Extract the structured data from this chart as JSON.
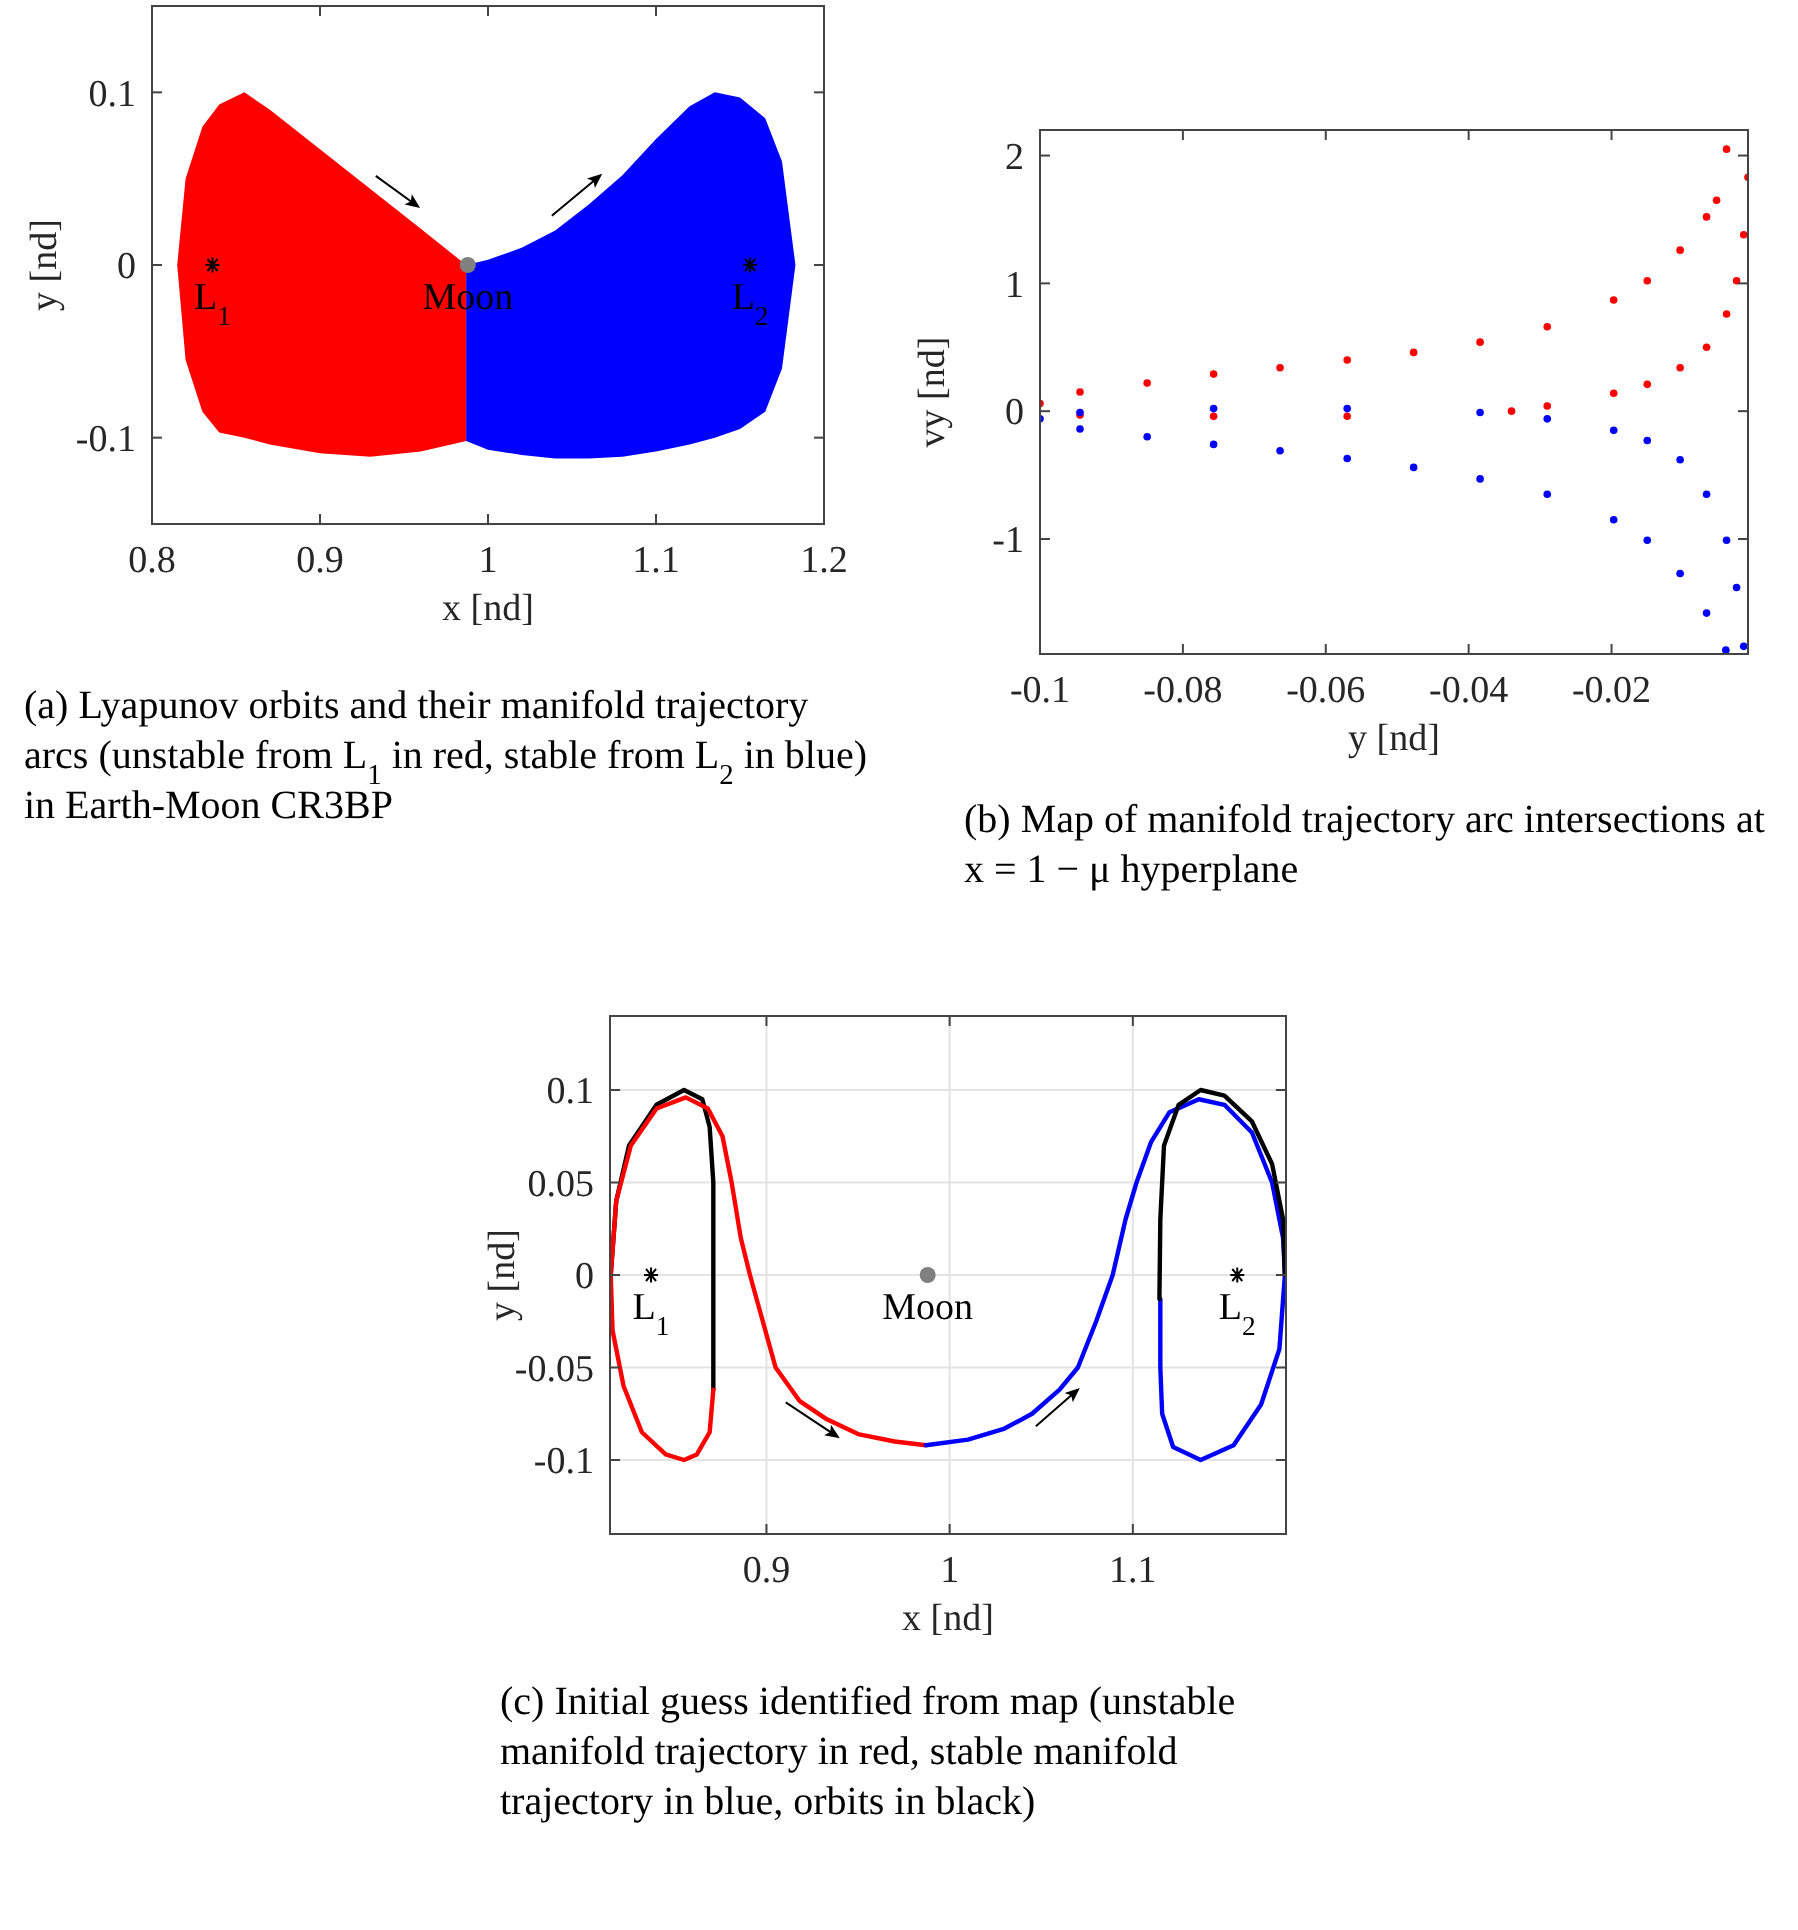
{
  "chart_data": [
    {
      "type": "area",
      "xlabel": "x [nd]",
      "ylabel": "y [nd]",
      "xlim": [
        0.8,
        1.2
      ],
      "ylim": [
        -0.15,
        0.15
      ],
      "xticks": [
        0.8,
        0.9,
        1,
        1.1,
        1.2
      ],
      "yticks": [
        -0.1,
        0,
        0.1
      ],
      "series": [
        {
          "color": "#ff0000",
          "x": [
            0.815,
            0.82,
            0.83,
            0.84,
            0.855,
            0.87,
            0.9,
            0.93,
            0.96,
            0.987
          ],
          "values": [
            0,
            0.05,
            0.08,
            0.093,
            0.1,
            0.09,
            0.067,
            0.044,
            0.021,
            0
          ]
        },
        {
          "color": "#ff0000",
          "x": [
            0.815,
            0.82,
            0.83,
            0.84,
            0.855,
            0.87,
            0.9,
            0.93,
            0.96,
            0.987
          ],
          "values": [
            0,
            -0.055,
            -0.085,
            -0.097,
            -0.1,
            -0.104,
            -0.109,
            -0.111,
            -0.108,
            -0.102
          ]
        },
        {
          "color": "#0000ff",
          "x": [
            0.987,
            1.0,
            1.02,
            1.04,
            1.06,
            1.08,
            1.1,
            1.12,
            1.135,
            1.15,
            1.165,
            1.175,
            1.183
          ],
          "values": [
            0,
            0.003,
            0.01,
            0.02,
            0.035,
            0.052,
            0.073,
            0.092,
            0.1,
            0.097,
            0.085,
            0.06,
            0
          ]
        },
        {
          "color": "#0000ff",
          "x": [
            0.987,
            1.0,
            1.02,
            1.04,
            1.06,
            1.08,
            1.1,
            1.12,
            1.135,
            1.15,
            1.165,
            1.175,
            1.183
          ],
          "values": [
            -0.102,
            -0.107,
            -0.11,
            -0.112,
            -0.112,
            -0.111,
            -0.108,
            -0.104,
            -0.1,
            -0.095,
            -0.085,
            -0.06,
            0
          ]
        },
        {
          "type": "scatter",
          "marker": "cross",
          "color": "#000000",
          "x": [
            0.836,
            1.156
          ],
          "values": [
            0,
            0
          ]
        },
        {
          "type": "scatter",
          "marker": "circle",
          "color": "#808080",
          "x": [
            0.988
          ],
          "values": [
            0
          ]
        }
      ],
      "annotations": [
        {
          "text": "L$_{1}$",
          "x": 0.836,
          "y": 0
        },
        {
          "text": "Moon",
          "x": 0.988,
          "y": 0
        },
        {
          "text": "L$_{2}$",
          "x": 1.156,
          "y": 0
        },
        "(a) Lyapunov orbits and their manifold trajectory arcs (unstable from L$_{1}$ in red, stable from L$_{2}$ in blue) in Earth-Moon CR3BP"
      ]
    },
    {
      "type": "scatter",
      "marker": "circle",
      "xlabel": "y [nd]",
      "ylabel": "vy [nd]",
      "xlim": [
        -0.1,
        -0.0009
      ],
      "ylim": [
        -1.9,
        2.2
      ],
      "xticks": [
        -0.1,
        -0.08,
        -0.06,
        -0.04,
        -0.02
      ],
      "yticks": [
        -1,
        0,
        1,
        2
      ],
      "series": [
        {
          "color": "#ff0000",
          "x": [
            -0.1,
            -0.0944,
            -0.085,
            -0.0757,
            -0.0664,
            -0.057,
            -0.0477,
            -0.0384,
            -0.029,
            -0.0197,
            -0.015,
            -0.0104,
            -0.0067,
            -0.0053,
            -0.0039
          ],
          "values": [
            0.06,
            0.15,
            0.22,
            0.29,
            0.34,
            0.4,
            0.46,
            0.54,
            0.66,
            0.87,
            1.02,
            1.26,
            1.52,
            1.65,
            2.05
          ]
        },
        {
          "color": "#ff0000",
          "x": [
            -0.0944,
            -0.0757,
            -0.057,
            -0.034,
            -0.029,
            -0.0197,
            -0.015,
            -0.0104,
            -0.0067,
            -0.0039,
            -0.0025,
            -0.0015,
            -0.0009
          ],
          "values": [
            -0.03,
            -0.04,
            -0.04,
            0.0,
            0.04,
            0.14,
            0.21,
            0.34,
            0.5,
            0.76,
            1.02,
            1.38,
            1.83
          ]
        },
        {
          "color": "#0000ff",
          "x": [
            -0.1,
            -0.0944,
            -0.0757,
            -0.057,
            -0.0384,
            -0.029,
            -0.0197,
            -0.015,
            -0.0104,
            -0.0067,
            -0.0039,
            -0.0025,
            -0.0015
          ],
          "values": [
            -0.06,
            -0.01,
            0.02,
            0.02,
            -0.01,
            -0.06,
            -0.15,
            -0.23,
            -0.38,
            -0.65,
            -1.01,
            -1.38,
            -1.84
          ]
        },
        {
          "color": "#0000ff",
          "x": [
            -0.0944,
            -0.085,
            -0.0757,
            -0.0664,
            -0.057,
            -0.0477,
            -0.0384,
            -0.029,
            -0.0197,
            -0.015,
            -0.0104,
            -0.0067,
            -0.004
          ],
          "values": [
            -0.14,
            -0.2,
            -0.26,
            -0.31,
            -0.37,
            -0.44,
            -0.53,
            -0.65,
            -0.85,
            -1.01,
            -1.27,
            -1.58,
            -1.87
          ]
        }
      ],
      "annotations": [
        "(b) Map of manifold trajectory arc intersections at x = 1 − μ hyperplane"
      ]
    },
    {
      "type": "line",
      "xlabel": "x [nd]",
      "ylabel": "y [nd]",
      "xlim": [
        0.8146,
        1.1836
      ],
      "ylim": [
        -0.14,
        0.14
      ],
      "xticks": [
        0.9,
        1,
        1.1
      ],
      "yticks": [
        -0.1,
        -0.05,
        0,
        0.05,
        0.1
      ],
      "grid": true,
      "series": [
        {
          "color": "#000000",
          "x": [
            0.815,
            0.818,
            0.825,
            0.84,
            0.855,
            0.865,
            0.869,
            0.871,
            0.871,
            0.871
          ],
          "values": [
            0,
            0.04,
            0.07,
            0.092,
            0.1,
            0.095,
            0.08,
            0.05,
            0,
            -0.062
          ]
        },
        {
          "color": "#ff0000",
          "x": [
            0.871,
            0.869,
            0.862,
            0.855,
            0.845,
            0.832,
            0.822,
            0.816,
            0.815,
            0.818,
            0.826,
            0.84,
            0.856,
            0.868,
            0.876,
            0.881,
            0.886,
            0.891,
            0.898,
            0.905,
            0.918,
            0.933,
            0.95,
            0.97,
            0.987
          ],
          "values": [
            -0.062,
            -0.085,
            -0.097,
            -0.1,
            -0.097,
            -0.085,
            -0.06,
            -0.03,
            0,
            0.04,
            0.07,
            0.09,
            0.096,
            0.09,
            0.075,
            0.05,
            0.02,
            0,
            -0.025,
            -0.05,
            -0.068,
            -0.078,
            -0.086,
            -0.09,
            -0.092
          ]
        },
        {
          "color": "#0000ff",
          "x": [
            0.987,
            1.01,
            1.03,
            1.045,
            1.06,
            1.07,
            1.08,
            1.089,
            1.096,
            1.102,
            1.11,
            1.12,
            1.136,
            1.15,
            1.165,
            1.176,
            1.182,
            1.183,
            1.18,
            1.17,
            1.155,
            1.137,
            1.122,
            1.116,
            1.115,
            1.115
          ],
          "values": [
            -0.092,
            -0.089,
            -0.083,
            -0.075,
            -0.062,
            -0.05,
            -0.025,
            0,
            0.03,
            0.05,
            0.072,
            0.088,
            0.095,
            0.092,
            0.077,
            0.05,
            0.02,
            0,
            -0.04,
            -0.07,
            -0.092,
            -0.1,
            -0.093,
            -0.075,
            -0.05,
            -0.013
          ]
        },
        {
          "color": "#000000",
          "x": [
            1.1145,
            1.115,
            1.117,
            1.125,
            1.137,
            1.15,
            1.165,
            1.176,
            1.182,
            1.183
          ],
          "values": [
            -0.013,
            0.03,
            0.07,
            0.092,
            0.1,
            0.097,
            0.083,
            0.06,
            0.03,
            0
          ]
        },
        {
          "type": "scatter",
          "marker": "cross",
          "color": "#000000",
          "x": [
            0.837,
            1.157
          ],
          "values": [
            0,
            0
          ]
        },
        {
          "type": "scatter",
          "marker": "circle",
          "color": "#808080",
          "x": [
            0.988
          ],
          "values": [
            0
          ]
        }
      ],
      "annotations": [
        {
          "text": "L$_{1}$",
          "x": 0.837,
          "y": 0
        },
        {
          "text": "Moon",
          "x": 0.988,
          "y": 0
        },
        {
          "text": "L$_{2}$",
          "x": 1.157,
          "y": 0
        },
        "(c) Initial guess identified from map (unstable manifold trajectory in red, stable manifold trajectory in blue, orbits in black)"
      ]
    }
  ]
}
